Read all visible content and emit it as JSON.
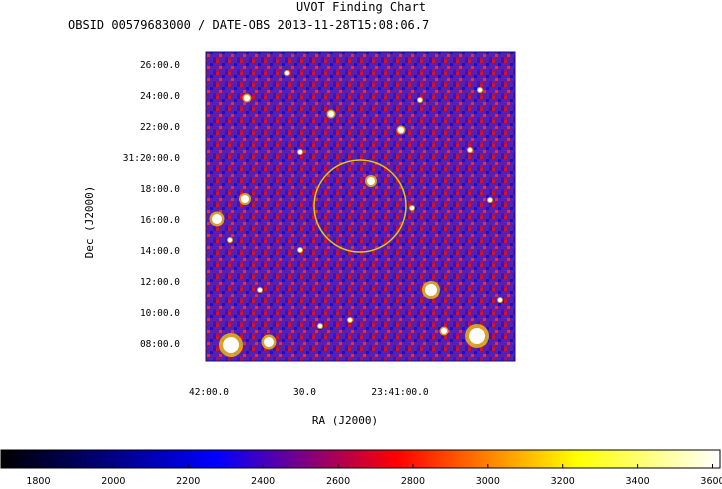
{
  "header": {
    "title": "UVOT Finding Chart",
    "subtitle": "OBSID 00579683000 / DATE-OBS 2013-11-28T15:08:06.7"
  },
  "chart_data": {
    "type": "heatmap",
    "xlabel": "RA (J2000)",
    "ylabel": "Dec (J2000)",
    "x_ticks": [
      {
        "label": "42:00.0",
        "ra_min": 42.0
      },
      {
        "label": "30.0",
        "ra_min": 41.5
      },
      {
        "label": "23:41:00.0",
        "ra_min": 41.0
      }
    ],
    "y_ticks": [
      {
        "label": "26:00.0",
        "dec_arcmin": 26
      },
      {
        "label": "24:00.0",
        "dec_arcmin": 24
      },
      {
        "label": "22:00.0",
        "dec_arcmin": 22
      },
      {
        "label": "31:20:00.0",
        "dec_arcmin": 20
      },
      {
        "label": "18:00.0",
        "dec_arcmin": 18
      },
      {
        "label": "16:00.0",
        "dec_arcmin": 16
      },
      {
        "label": "14:00.0",
        "dec_arcmin": 14
      },
      {
        "label": "12:00.0",
        "dec_arcmin": 12
      },
      {
        "label": "10:00.0",
        "dec_arcmin": 10
      },
      {
        "label": "08:00.0",
        "dec_arcmin": 8
      }
    ],
    "colorbar": {
      "min": 1700,
      "max": 3620,
      "tick_labels": [
        "1800",
        "2000",
        "2200",
        "2400",
        "2600",
        "2800",
        "3000",
        "3200",
        "3400",
        "3600"
      ],
      "colors": [
        "#000000",
        "#0000ff",
        "#ff0000",
        "#ffff00",
        "#ffffff"
      ]
    },
    "target_circle": {
      "color": "#e8c800"
    }
  }
}
